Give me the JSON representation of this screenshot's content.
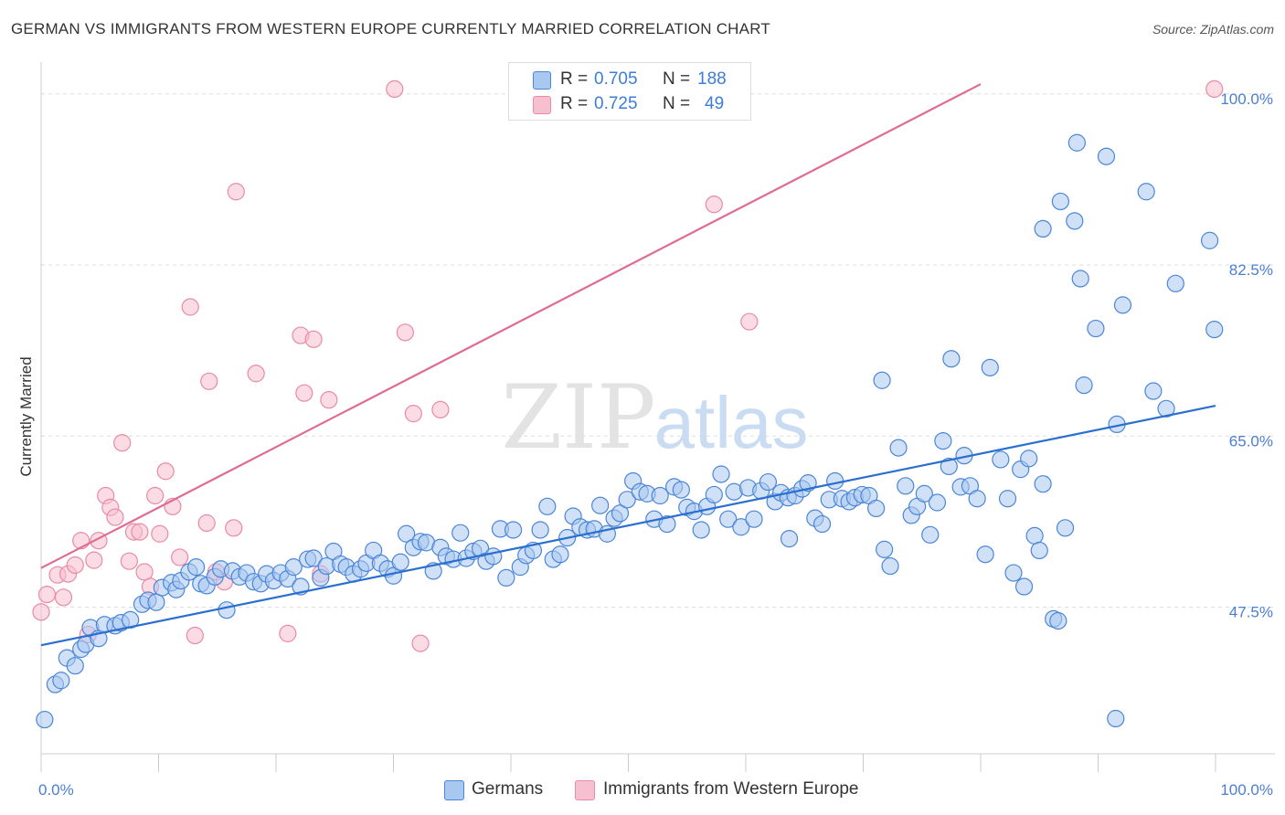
{
  "header": {
    "title": "GERMAN VS IMMIGRANTS FROM WESTERN EUROPE CURRENTLY MARRIED CORRELATION CHART",
    "source": "Source: ZipAtlas.com"
  },
  "watermark": {
    "zip": "ZIP",
    "atlas": "atlas"
  },
  "legend": {
    "r_label": "R =",
    "n_label": "N =",
    "rows": [
      {
        "r": "0.705",
        "n": "188"
      },
      {
        "r": "0.725",
        "n": "49"
      }
    ]
  },
  "bottom_legend": {
    "germans": "Germans",
    "immigrants": "Immigrants from Western Europe"
  },
  "colors": {
    "blue_fill": "#a9c8f0",
    "blue_stroke": "#4a86d8",
    "blue_line": "#2a6fd0",
    "pink_fill": "#f7c0d0",
    "pink_stroke": "#e88aa8",
    "pink_line": "#e06b93",
    "grid": "#dddddd",
    "tick_text": "#4a7fd4"
  },
  "chart_data": {
    "type": "scatter",
    "title": "GERMAN VS IMMIGRANTS FROM WESTERN EUROPE CURRENTLY MARRIED CORRELATION CHART",
    "xlabel": "",
    "ylabel": "Currently Married",
    "xlim": [
      0,
      100
    ],
    "ylim": [
      32.5,
      102.5
    ],
    "x_tick_labels": [
      "0.0%",
      "100.0%"
    ],
    "y_ticks": [
      47.5,
      65.0,
      82.5,
      100.0
    ],
    "y_tick_labels": [
      "47.5%",
      "65.0%",
      "82.5%",
      "100.0%"
    ],
    "series": [
      {
        "name": "Germans",
        "r": 0.705,
        "n": 188,
        "trend": {
          "x": [
            0,
            100
          ],
          "y": [
            43.6,
            68.1
          ]
        },
        "points": [
          [
            0.3,
            36.0
          ],
          [
            1.2,
            39.6
          ],
          [
            1.7,
            40.0
          ],
          [
            2.2,
            42.3
          ],
          [
            2.9,
            41.5
          ],
          [
            3.4,
            43.2
          ],
          [
            3.8,
            43.7
          ],
          [
            4.2,
            45.4
          ],
          [
            4.9,
            44.3
          ],
          [
            5.4,
            45.7
          ],
          [
            6.3,
            45.6
          ],
          [
            6.8,
            45.9
          ],
          [
            7.6,
            46.2
          ],
          [
            8.6,
            47.8
          ],
          [
            9.1,
            48.2
          ],
          [
            9.8,
            48.0
          ],
          [
            10.3,
            49.5
          ],
          [
            11.1,
            50.0
          ],
          [
            11.5,
            49.3
          ],
          [
            11.9,
            50.2
          ],
          [
            12.6,
            51.1
          ],
          [
            13.2,
            51.6
          ],
          [
            13.6,
            49.9
          ],
          [
            14.1,
            49.7
          ],
          [
            14.8,
            50.6
          ],
          [
            15.3,
            51.4
          ],
          [
            15.8,
            47.2
          ],
          [
            16.3,
            51.2
          ],
          [
            16.9,
            50.6
          ],
          [
            17.5,
            51.0
          ],
          [
            18.1,
            50.1
          ],
          [
            18.7,
            49.9
          ],
          [
            19.2,
            50.9
          ],
          [
            19.8,
            50.2
          ],
          [
            20.4,
            51.0
          ],
          [
            21.0,
            50.4
          ],
          [
            21.5,
            51.6
          ],
          [
            22.1,
            49.6
          ],
          [
            22.7,
            52.4
          ],
          [
            23.2,
            52.5
          ],
          [
            23.8,
            50.5
          ],
          [
            24.3,
            51.7
          ],
          [
            24.9,
            53.2
          ],
          [
            25.5,
            51.9
          ],
          [
            26.0,
            51.6
          ],
          [
            26.6,
            50.9
          ],
          [
            27.2,
            51.4
          ],
          [
            27.7,
            52.0
          ],
          [
            28.3,
            53.3
          ],
          [
            28.9,
            52.0
          ],
          [
            29.5,
            51.4
          ],
          [
            30.0,
            50.7
          ],
          [
            30.6,
            52.1
          ],
          [
            31.1,
            55.0
          ],
          [
            31.7,
            53.6
          ],
          [
            32.3,
            54.2
          ],
          [
            32.8,
            54.1
          ],
          [
            33.4,
            51.2
          ],
          [
            34.0,
            53.6
          ],
          [
            34.5,
            52.7
          ],
          [
            35.1,
            52.4
          ],
          [
            35.7,
            55.1
          ],
          [
            36.2,
            52.5
          ],
          [
            36.8,
            53.2
          ],
          [
            37.4,
            53.5
          ],
          [
            37.9,
            52.2
          ],
          [
            38.5,
            52.7
          ],
          [
            39.1,
            55.5
          ],
          [
            39.6,
            50.5
          ],
          [
            40.2,
            55.4
          ],
          [
            40.8,
            51.6
          ],
          [
            41.3,
            52.8
          ],
          [
            41.9,
            53.3
          ],
          [
            42.5,
            55.4
          ],
          [
            43.1,
            57.8
          ],
          [
            43.6,
            52.4
          ],
          [
            44.2,
            52.9
          ],
          [
            44.8,
            54.6
          ],
          [
            45.3,
            56.8
          ],
          [
            45.9,
            55.7
          ],
          [
            46.5,
            55.4
          ],
          [
            47.1,
            55.5
          ],
          [
            47.6,
            57.9
          ],
          [
            48.2,
            55.0
          ],
          [
            48.8,
            56.6
          ],
          [
            49.3,
            57.1
          ],
          [
            49.9,
            58.5
          ],
          [
            50.4,
            60.4
          ],
          [
            51.0,
            59.3
          ],
          [
            51.6,
            59.1
          ],
          [
            52.2,
            56.5
          ],
          [
            52.7,
            58.9
          ],
          [
            53.3,
            56.0
          ],
          [
            53.9,
            59.8
          ],
          [
            54.5,
            59.5
          ],
          [
            55.0,
            57.7
          ],
          [
            55.6,
            57.3
          ],
          [
            56.2,
            55.4
          ],
          [
            56.7,
            57.8
          ],
          [
            57.3,
            59.0
          ],
          [
            57.9,
            61.1
          ],
          [
            58.5,
            56.5
          ],
          [
            59.0,
            59.3
          ],
          [
            59.6,
            55.7
          ],
          [
            60.2,
            59.7
          ],
          [
            60.7,
            56.5
          ],
          [
            61.3,
            59.4
          ],
          [
            61.9,
            60.3
          ],
          [
            62.5,
            58.3
          ],
          [
            63.0,
            59.2
          ],
          [
            63.6,
            58.7
          ],
          [
            63.7,
            54.5
          ],
          [
            64.2,
            58.9
          ],
          [
            64.8,
            59.6
          ],
          [
            65.3,
            60.2
          ],
          [
            65.9,
            56.6
          ],
          [
            66.5,
            56.0
          ],
          [
            67.1,
            58.5
          ],
          [
            67.6,
            60.4
          ],
          [
            68.2,
            58.6
          ],
          [
            68.8,
            58.3
          ],
          [
            69.3,
            58.7
          ],
          [
            69.9,
            59.0
          ],
          [
            70.5,
            58.9
          ],
          [
            71.1,
            57.6
          ],
          [
            71.6,
            70.7
          ],
          [
            71.8,
            53.4
          ],
          [
            72.3,
            51.7
          ],
          [
            73.0,
            63.8
          ],
          [
            73.6,
            59.9
          ],
          [
            74.1,
            56.9
          ],
          [
            74.6,
            57.8
          ],
          [
            75.2,
            59.1
          ],
          [
            75.7,
            54.9
          ],
          [
            76.3,
            58.2
          ],
          [
            76.8,
            64.5
          ],
          [
            77.3,
            61.9
          ],
          [
            77.5,
            72.9
          ],
          [
            78.3,
            59.8
          ],
          [
            78.6,
            63.0
          ],
          [
            79.1,
            59.9
          ],
          [
            79.7,
            58.6
          ],
          [
            80.4,
            52.9
          ],
          [
            80.8,
            72.0
          ],
          [
            81.7,
            62.6
          ],
          [
            82.3,
            58.6
          ],
          [
            82.8,
            51.0
          ],
          [
            83.4,
            61.6
          ],
          [
            83.7,
            49.6
          ],
          [
            84.1,
            62.7
          ],
          [
            84.6,
            54.8
          ],
          [
            85.0,
            53.3
          ],
          [
            85.3,
            60.1
          ],
          [
            85.3,
            86.2
          ],
          [
            86.2,
            46.3
          ],
          [
            86.6,
            46.1
          ],
          [
            86.8,
            89.0
          ],
          [
            87.2,
            55.6
          ],
          [
            88.0,
            87.0
          ],
          [
            88.2,
            95.0
          ],
          [
            88.5,
            81.1
          ],
          [
            88.8,
            70.2
          ],
          [
            89.8,
            76.0
          ],
          [
            90.7,
            93.6
          ],
          [
            91.5,
            36.1
          ],
          [
            91.6,
            66.2
          ],
          [
            92.1,
            78.4
          ],
          [
            94.1,
            90.0
          ],
          [
            94.7,
            69.6
          ],
          [
            95.8,
            67.8
          ],
          [
            96.6,
            80.6
          ],
          [
            99.5,
            85.0
          ],
          [
            99.9,
            75.9
          ]
        ]
      },
      {
        "name": "Immigrants from Western Europe",
        "r": 0.725,
        "n": 49,
        "trend": {
          "x": [
            0,
            80
          ],
          "y": [
            51.5,
            101.0
          ]
        },
        "points": [
          [
            0.0,
            47.0
          ],
          [
            0.5,
            48.8
          ],
          [
            1.4,
            50.8
          ],
          [
            1.9,
            48.5
          ],
          [
            2.3,
            50.9
          ],
          [
            2.9,
            51.8
          ],
          [
            3.4,
            54.3
          ],
          [
            4.0,
            44.7
          ],
          [
            4.5,
            52.3
          ],
          [
            4.9,
            54.3
          ],
          [
            5.5,
            58.9
          ],
          [
            5.9,
            57.7
          ],
          [
            6.3,
            56.7
          ],
          [
            6.9,
            64.3
          ],
          [
            7.5,
            52.2
          ],
          [
            7.9,
            55.2
          ],
          [
            8.4,
            55.2
          ],
          [
            8.8,
            51.1
          ],
          [
            9.3,
            49.6
          ],
          [
            9.7,
            58.9
          ],
          [
            10.1,
            55.0
          ],
          [
            10.6,
            61.4
          ],
          [
            11.2,
            57.8
          ],
          [
            11.8,
            52.6
          ],
          [
            12.7,
            78.2
          ],
          [
            13.1,
            44.6
          ],
          [
            14.1,
            56.1
          ],
          [
            14.3,
            70.6
          ],
          [
            14.9,
            51.1
          ],
          [
            15.6,
            50.1
          ],
          [
            16.4,
            55.6
          ],
          [
            16.6,
            90.0
          ],
          [
            18.3,
            71.4
          ],
          [
            21.0,
            44.8
          ],
          [
            22.1,
            75.3
          ],
          [
            22.4,
            69.4
          ],
          [
            23.2,
            74.9
          ],
          [
            23.8,
            50.9
          ],
          [
            24.5,
            68.7
          ],
          [
            30.1,
            100.5
          ],
          [
            31.0,
            75.6
          ],
          [
            31.7,
            67.3
          ],
          [
            32.3,
            43.8
          ],
          [
            34.0,
            67.7
          ],
          [
            57.3,
            88.7
          ],
          [
            60.3,
            76.7
          ],
          [
            99.9,
            100.5
          ]
        ]
      }
    ]
  }
}
